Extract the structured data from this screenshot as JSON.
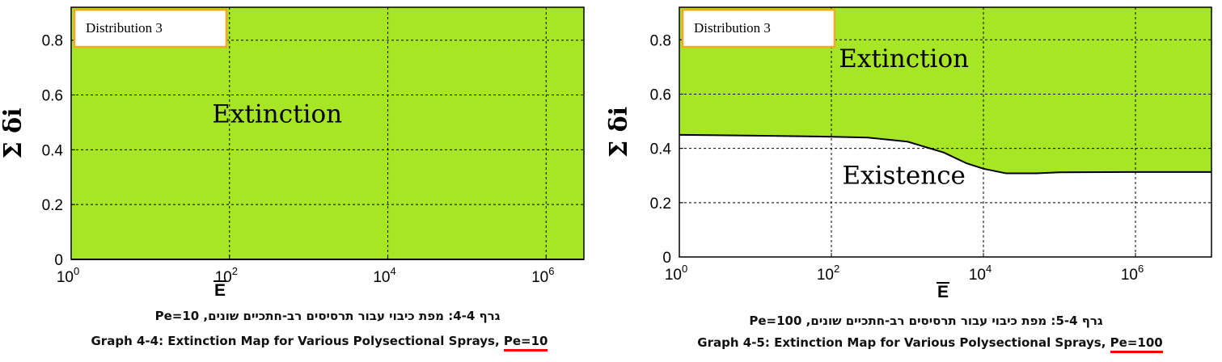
{
  "colors": {
    "extinction_fill": "#a6e625",
    "legend_border": "#f5a623",
    "plot_frame": "#000000",
    "grid": "#000000"
  },
  "chart_data": [
    {
      "type": "area",
      "legend_text": "Distribution 3",
      "legend_placement": "top-left",
      "xlabel": "E",
      "ylabel": "Σ δi",
      "x_scale": "log",
      "xlim": [
        1,
        3000000
      ],
      "ylim": [
        0,
        0.92
      ],
      "xticks": [
        1,
        100,
        10000,
        1000000
      ],
      "xtick_labels": [
        {
          "base": "10",
          "exp": "0"
        },
        {
          "base": "10",
          "exp": "2"
        },
        {
          "base": "10",
          "exp": "4"
        },
        {
          "base": "10",
          "exp": "6"
        }
      ],
      "yticks": [
        0,
        0.2,
        0.4,
        0.6,
        0.8
      ],
      "ytick_labels": [
        "0",
        "0.2",
        "0.4",
        "0.6",
        "0.8"
      ],
      "grid": true,
      "regions": [
        {
          "label": "Extinction",
          "label_at": {
            "x": 400,
            "y": 0.5
          }
        }
      ],
      "boundary": {
        "x": [
          1,
          10,
          100,
          1000,
          10000,
          100000,
          1000000,
          3000000
        ],
        "y": [
          0,
          0,
          0,
          0,
          0,
          0,
          0,
          0
        ]
      }
    },
    {
      "type": "area",
      "legend_text": "Distribution 3",
      "legend_placement": "top-left",
      "xlabel": "E",
      "ylabel": "Σ δi",
      "x_scale": "log",
      "xlim": [
        1,
        10000000
      ],
      "ylim": [
        0,
        0.92
      ],
      "xticks": [
        1,
        100,
        10000,
        1000000
      ],
      "xtick_labels": [
        {
          "base": "10",
          "exp": "0"
        },
        {
          "base": "10",
          "exp": "2"
        },
        {
          "base": "10",
          "exp": "4"
        },
        {
          "base": "10",
          "exp": "6"
        }
      ],
      "yticks": [
        0,
        0.2,
        0.4,
        0.6,
        0.8
      ],
      "ytick_labels": [
        "0",
        "0.2",
        "0.4",
        "0.6",
        "0.8"
      ],
      "grid": true,
      "regions": [
        {
          "label": "Extinction",
          "label_at": {
            "x": 900,
            "y": 0.7
          }
        },
        {
          "label": "Existence",
          "label_at": {
            "x": 900,
            "y": 0.27
          }
        }
      ],
      "boundary": {
        "x": [
          1,
          10,
          100,
          300,
          1000,
          3000,
          6000,
          10000,
          20000,
          50000,
          100000,
          1000000,
          10000000
        ],
        "y": [
          0.45,
          0.447,
          0.443,
          0.44,
          0.425,
          0.385,
          0.345,
          0.325,
          0.308,
          0.308,
          0.312,
          0.313,
          0.313
        ]
      }
    }
  ],
  "captions": [
    {
      "hebrew": "גרף 4-4: מפת כיבוי עבור תרסיסים רב-חתכיים שונים, Pe=10",
      "english_main": "Graph 4-4: Extinction Map for Various Polysectional Sprays, ",
      "english_highlight": "Pe=10"
    },
    {
      "hebrew": "גרף 5-4: מפת כיבוי עבור תרסיסים רב-חתכיים שונים, Pe=100",
      "english_main": "Graph 4-5: Extinction Map for Various Polysectional Sprays, ",
      "english_highlight": "Pe=100"
    }
  ]
}
